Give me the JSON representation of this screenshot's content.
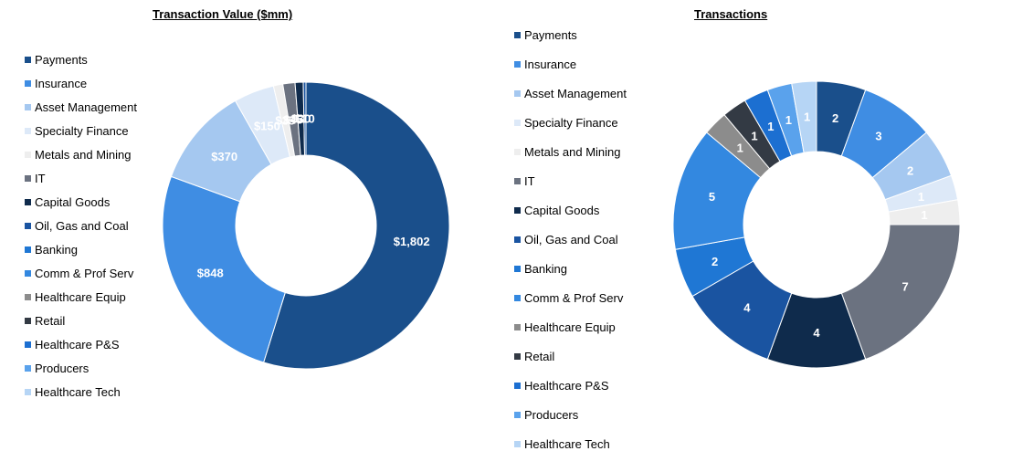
{
  "colors": {
    "Payments": "#1a4f8b",
    "Insurance": "#3f8de3",
    "Asset Management": "#a5c8f0",
    "Specialty Finance": "#dde9f8",
    "Metals and Mining": "#eeeeee",
    "IT": "#6b7280",
    "Capital Goods": "#0f2b4c",
    "Oil, Gas and Coal": "#1a54a1",
    "Banking": "#1f77d4",
    "Comm & Prof Serv": "#3388e0",
    "Healthcare Equip": "#8c8c8c",
    "Retail": "#333a44",
    "Healthcare P&S": "#1c6fd1",
    "Producers": "#5aa2ec",
    "Healthcare Tech": "#b6d5f5"
  },
  "chart_data": [
    {
      "type": "pie",
      "title": "Transaction Value ($mm)",
      "categories": [
        "Payments",
        "Insurance",
        "Asset Management",
        "Specialty Finance",
        "Metals and Mining",
        "IT",
        "Capital Goods",
        "Oil, Gas and Coal",
        "Banking",
        "Comm & Prof Serv",
        "Healthcare Equip",
        "Retail",
        "Healthcare P&S",
        "Producers",
        "Healthcare Tech"
      ],
      "slices": [
        {
          "category": "Payments",
          "value": 1802,
          "label": "$1,802"
        },
        {
          "category": "Insurance",
          "value": 848,
          "label": "$848"
        },
        {
          "category": "Asset Management",
          "value": 370,
          "label": "$370"
        },
        {
          "category": "Specialty Finance",
          "value": 150,
          "label": "$150"
        },
        {
          "category": "Metals and Mining",
          "value": 35,
          "label": "$35"
        },
        {
          "category": "IT",
          "value": 45,
          "label": "$45"
        },
        {
          "category": "Capital Goods",
          "value": 30,
          "label": "$30"
        },
        {
          "category": "Oil, Gas and Coal",
          "value": 10,
          "label": "$10"
        }
      ]
    },
    {
      "type": "pie",
      "title": "Transactions",
      "categories": [
        "Payments",
        "Insurance",
        "Asset Management",
        "Specialty Finance",
        "Metals and Mining",
        "IT",
        "Capital Goods",
        "Oil, Gas and Coal",
        "Banking",
        "Comm & Prof Serv",
        "Healthcare Equip",
        "Retail",
        "Healthcare P&S",
        "Producers",
        "Healthcare Tech"
      ],
      "slices": [
        {
          "category": "Payments",
          "value": 2,
          "label": "2"
        },
        {
          "category": "Insurance",
          "value": 3,
          "label": "3"
        },
        {
          "category": "Asset Management",
          "value": 2,
          "label": "2"
        },
        {
          "category": "Specialty Finance",
          "value": 1,
          "label": "1"
        },
        {
          "category": "Metals and Mining",
          "value": 1,
          "label": "1"
        },
        {
          "category": "IT",
          "value": 7,
          "label": "7"
        },
        {
          "category": "Capital Goods",
          "value": 4,
          "label": "4"
        },
        {
          "category": "Oil, Gas and Coal",
          "value": 4,
          "label": "4"
        },
        {
          "category": "Banking",
          "value": 2,
          "label": "2"
        },
        {
          "category": "Comm & Prof Serv",
          "value": 5,
          "label": "5"
        },
        {
          "category": "Healthcare Equip",
          "value": 1,
          "label": "1"
        },
        {
          "category": "Retail",
          "value": 1,
          "label": "1"
        },
        {
          "category": "Healthcare P&S",
          "value": 1,
          "label": "1"
        },
        {
          "category": "Producers",
          "value": 1,
          "label": "1"
        },
        {
          "category": "Healthcare Tech",
          "value": 1,
          "label": "1"
        }
      ]
    }
  ]
}
